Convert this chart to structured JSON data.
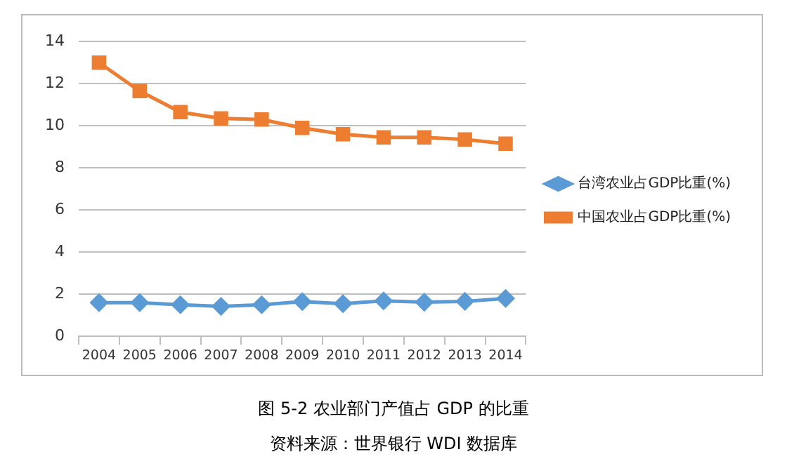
{
  "chart_data": {
    "type": "line",
    "title": "图 5-2 农业部门产值占 GDP 的比重",
    "annotations": [
      "资料来源：世界银行 WDI 数据库"
    ],
    "categories": [
      "2004",
      "2005",
      "2006",
      "2007",
      "2008",
      "2009",
      "2010",
      "2011",
      "2012",
      "2013",
      "2014"
    ],
    "series": [
      {
        "name": "台湾农业占GDP比重(%)",
        "color": "#5b9bd5",
        "marker": "diamond",
        "values": [
          1.6,
          1.6,
          1.5,
          1.42,
          1.5,
          1.65,
          1.55,
          1.68,
          1.62,
          1.66,
          1.8
        ]
      },
      {
        "name": "中国农业占GDP比重(%)",
        "color": "#ed7d31",
        "marker": "square",
        "values": [
          13,
          11.65,
          10.65,
          10.35,
          10.3,
          9.9,
          9.6,
          9.45,
          9.45,
          9.35,
          9.15
        ]
      }
    ],
    "ylim": [
      0,
      14
    ],
    "yticks": [
      0,
      2,
      4,
      6,
      8,
      10,
      12,
      14
    ],
    "grid": "y",
    "legend": "right"
  }
}
